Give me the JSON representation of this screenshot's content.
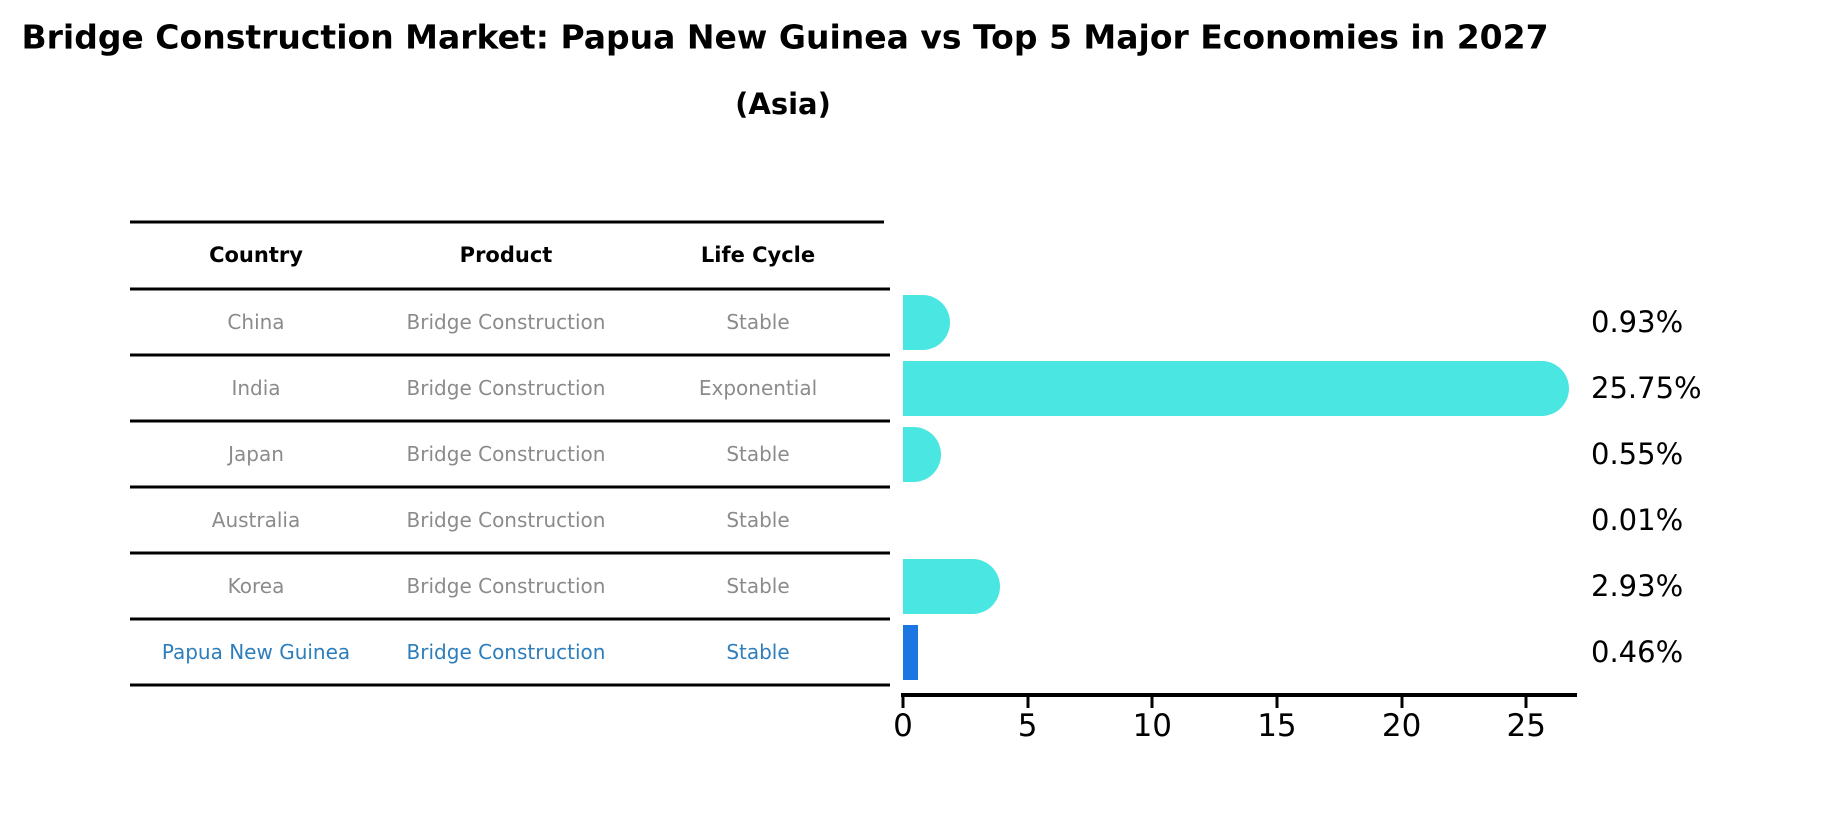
{
  "title": "Bridge Construction Market: Papua New Guinea vs Top 5 Major Economies in 2027",
  "subtitle": "(Asia)",
  "table": {
    "headers": [
      "Country",
      "Product",
      "Life Cycle"
    ],
    "rows": [
      {
        "country": "China",
        "product": "Bridge Construction",
        "life_cycle": "Stable",
        "highlighted": false
      },
      {
        "country": "India",
        "product": "Bridge Construction",
        "life_cycle": "Exponential",
        "highlighted": false
      },
      {
        "country": "Japan",
        "product": "Bridge Construction",
        "life_cycle": "Stable",
        "highlighted": false
      },
      {
        "country": "Australia",
        "product": "Bridge Construction",
        "life_cycle": "Stable",
        "highlighted": false
      },
      {
        "country": "Korea",
        "product": "Bridge Construction",
        "life_cycle": "Stable",
        "highlighted": false
      },
      {
        "country": "Papua New Guinea",
        "product": "Bridge Construction",
        "life_cycle": "Stable",
        "highlighted": true
      }
    ]
  },
  "chart_data": {
    "type": "bar",
    "orientation": "horizontal",
    "categories": [
      "China",
      "India",
      "Japan",
      "Australia",
      "Korea",
      "Papua New Guinea"
    ],
    "values": [
      0.93,
      25.75,
      0.55,
      0.01,
      2.93,
      0.46
    ],
    "value_labels": [
      "0.93%",
      "25.75%",
      "0.55%",
      "0.01%",
      "2.93%",
      "0.46%"
    ],
    "x_ticks": [
      0,
      5,
      10,
      15,
      20,
      25
    ],
    "xlim": [
      0,
      27
    ],
    "grid": false,
    "legend": "none",
    "bar_color": "#4AE6E2",
    "highlight_bar_color": "#1B76E4",
    "highlight_text_color": "#2E7EBC",
    "body_text_color": "#8B8B8B"
  }
}
